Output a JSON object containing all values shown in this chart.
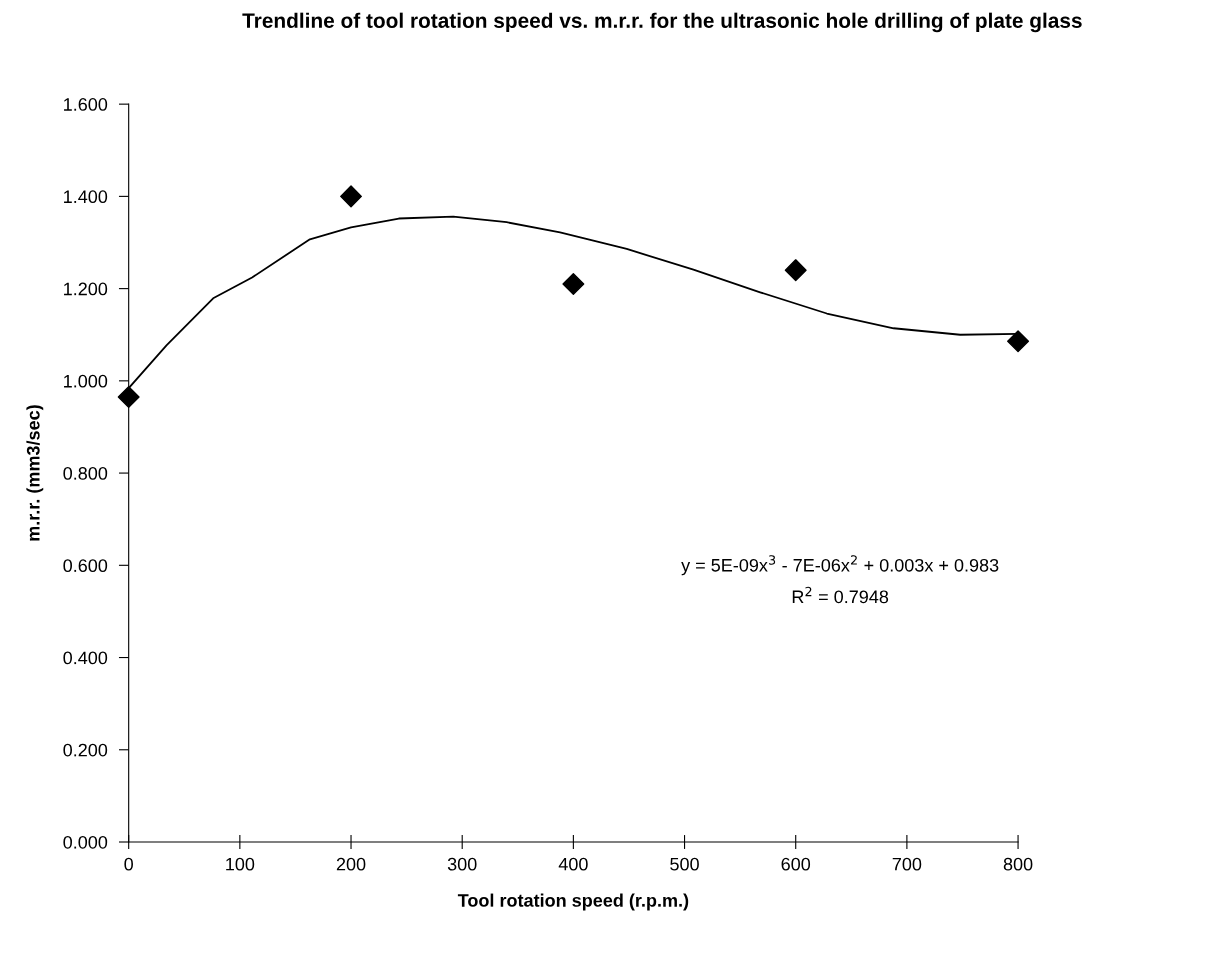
{
  "chart_data": {
    "type": "scatter",
    "title": "Trendline of tool rotation speed vs. m.r.r. for the ultrasonic hole drilling of plate glass",
    "xlabel": "Tool rotation speed (r.p.m.)",
    "ylabel": "m.r.r. (mm3/sec)",
    "xlim": [
      0,
      800
    ],
    "xticks": [
      0,
      100,
      200,
      300,
      400,
      500,
      600,
      700,
      800
    ],
    "ylim": [
      0,
      1.6
    ],
    "yticks": [
      {
        "value": 0,
        "label": "0.000"
      },
      {
        "value": 0.2,
        "label": "0.200"
      },
      {
        "value": 0.4,
        "label": "0.400"
      },
      {
        "value": 0.6,
        "label": "0.600"
      },
      {
        "value": 0.8,
        "label": "0.800"
      },
      {
        "value": 1.0,
        "label": "1.000"
      },
      {
        "value": 1.2,
        "label": "1.200"
      },
      {
        "value": 1.4,
        "label": "1.400"
      },
      {
        "value": 1.6,
        "label": "1.600"
      }
    ],
    "grid": false,
    "legend": false,
    "marker": "diamond",
    "series": [
      {
        "color": "#000000",
        "x": [
          0,
          200,
          400,
          600,
          800
        ],
        "values": [
          0.965,
          1.4,
          1.21,
          1.24,
          1.086
        ]
      },
      {
        "type": "line",
        "color": "#000000",
        "marker": "none",
        "line_style": "solid",
        "x": [
          0,
          34,
          76,
          111,
          163,
          200,
          243,
          292,
          340,
          388,
          448,
          508,
          568,
          628,
          688,
          748,
          799
        ],
        "values": [
          0.984,
          1.077,
          1.179,
          1.224,
          1.307,
          1.333,
          1.352,
          1.356,
          1.344,
          1.322,
          1.286,
          1.241,
          1.192,
          1.146,
          1.114,
          1.1,
          1.102
        ]
      }
    ],
    "annotations": [
      "y = 5E-09x$^{3}$ - 7E-06x$^{2}$ + 0.003x + 0.983",
      "R$^{2}$ = 0.7948"
    ]
  }
}
